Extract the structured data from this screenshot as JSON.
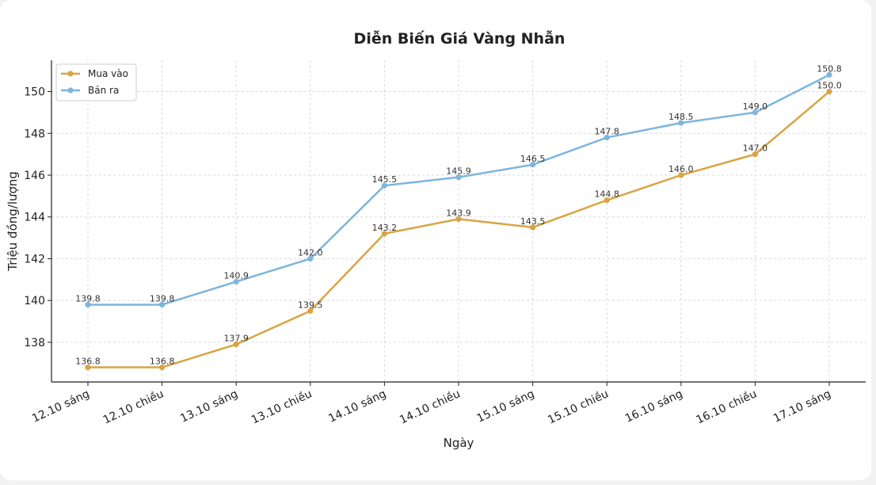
{
  "chart_data": {
    "type": "line",
    "title": "Diễn Biến Giá Vàng Nhẫn",
    "xlabel": "Ngày",
    "ylabel": "Triệu đồng/lượng",
    "categories": [
      "12.10 sáng",
      "12.10 chiều",
      "13.10 sáng",
      "13.10 chiều",
      "14.10 sáng",
      "14.10 chiều",
      "15.10 sáng",
      "15.10 chiều",
      "16.10 sáng",
      "16.10 chiều",
      "17.10 sáng"
    ],
    "series": [
      {
        "name": "Mua vào",
        "color": "#D9A441",
        "values": [
          136.8,
          136.8,
          137.9,
          139.5,
          143.2,
          143.9,
          143.5,
          144.8,
          146.0,
          147.0,
          150.0
        ]
      },
      {
        "name": "Bán ra",
        "color": "#7DB5DD",
        "values": [
          139.8,
          139.8,
          140.9,
          142.0,
          145.5,
          145.9,
          146.5,
          147.8,
          148.5,
          149.0,
          150.8
        ]
      }
    ],
    "ylim": [
      136.1,
      151.5
    ],
    "yticks": [
      138,
      140,
      142,
      144,
      146,
      148,
      150
    ],
    "grid": true,
    "legend": "top-left"
  }
}
